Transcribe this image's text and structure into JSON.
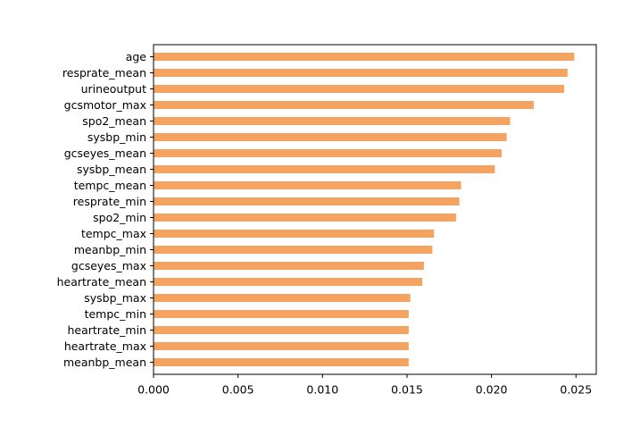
{
  "chart_data": {
    "type": "bar",
    "orientation": "horizontal",
    "title": "",
    "xlabel": "",
    "ylabel": "",
    "xlim": [
      0,
      0.0262
    ],
    "xticks": [
      0.0,
      0.005,
      0.01,
      0.015,
      0.02,
      0.025
    ],
    "xtick_labels": [
      "0.000",
      "0.005",
      "0.010",
      "0.015",
      "0.020",
      "0.025"
    ],
    "grid": false,
    "legend": "none",
    "bar_color": "#f4a460",
    "categories": [
      "age",
      "resprate_mean",
      "urineoutput",
      "gcsmotor_max",
      "spo2_mean",
      "sysbp_min",
      "gcseyes_mean",
      "sysbp_mean",
      "tempc_mean",
      "resprate_min",
      "spo2_min",
      "tempc_max",
      "meanbp_min",
      "gcseyes_max",
      "heartrate_mean",
      "sysbp_max",
      "tempc_min",
      "heartrate_min",
      "heartrate_max",
      "meanbp_mean"
    ],
    "values": [
      0.0249,
      0.0245,
      0.0243,
      0.0225,
      0.0211,
      0.0209,
      0.0206,
      0.0202,
      0.0182,
      0.0181,
      0.0179,
      0.0166,
      0.0165,
      0.016,
      0.0159,
      0.0152,
      0.0151,
      0.0151,
      0.0151,
      0.0151
    ]
  }
}
